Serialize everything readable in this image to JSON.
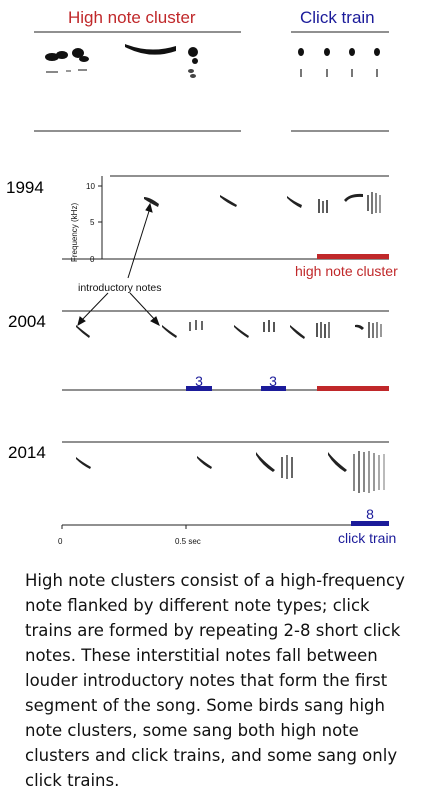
{
  "top_headers": {
    "high_note_cluster": "High note cluster",
    "click_train": "Click train"
  },
  "years": [
    "1994",
    "2004",
    "2014"
  ],
  "axis": {
    "ylabel": "Frequency (kHz)",
    "yticks": [
      "10",
      "5",
      "0"
    ],
    "xticks": [
      "0",
      "0.5 sec"
    ]
  },
  "annotations": {
    "introductory_notes": "introductory notes",
    "high_note_cluster_label": "high note cluster",
    "click_train_label": "click train"
  },
  "click_counts": [
    "3",
    "3",
    "8"
  ],
  "caption": "High note clusters consist of a high-frequency note flanked by different note types; click trains are formed by repeating 2-8 short click notes. These interstitial notes fall between louder introductory notes that form the first segment of the song. Some birds sang high note clusters, some sang both high note clusters and click trains, and some sang only click trains.",
  "colors": {
    "red": "#c0282a",
    "blue": "#1b1b9a",
    "ink": "#222222"
  }
}
